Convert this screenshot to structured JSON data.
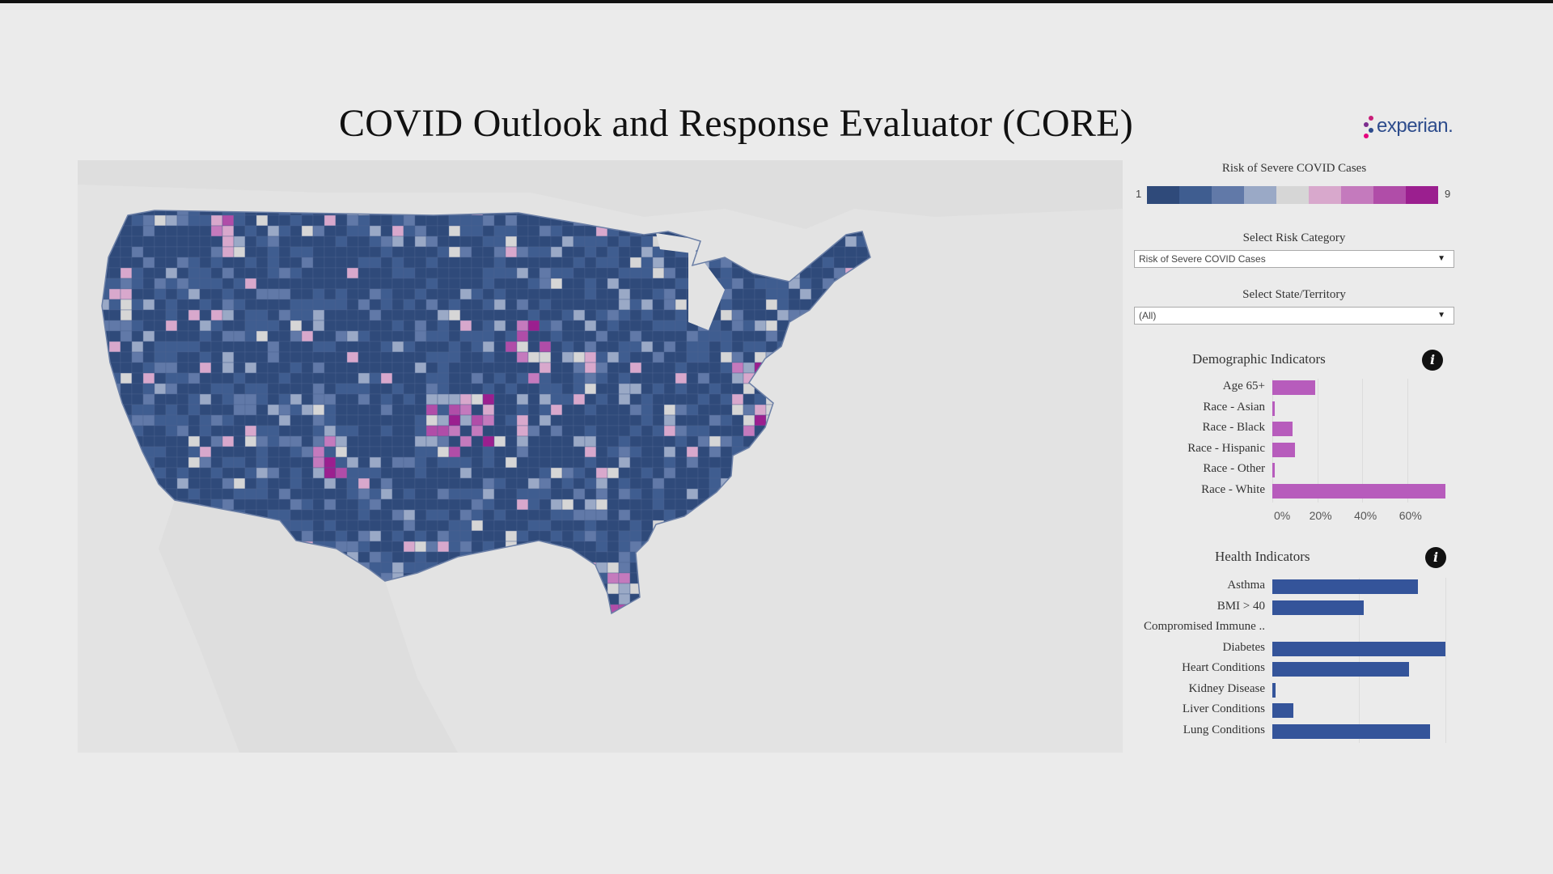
{
  "title": "COVID Outlook and Response Evaluator (CORE)",
  "logo": {
    "text": "experian.",
    "dot_colors": [
      "#c81e78",
      "#7b2d8e",
      "#2d4c8c",
      "#e6007e"
    ]
  },
  "legend": {
    "title": "Risk of Severe COVID Cases",
    "min_label": "1",
    "max_label": "9",
    "colors": [
      "#2f4a7a",
      "#3f5d90",
      "#6179a8",
      "#9aa9c6",
      "#d6d6d6",
      "#d8a8cc",
      "#c47abd",
      "#b04da8",
      "#9b1f8f"
    ]
  },
  "filters": {
    "risk": {
      "label": "Select Risk Category",
      "value": "Risk of Severe COVID Cases"
    },
    "state": {
      "label": "Select State/Territory",
      "value": "(All)"
    }
  },
  "demographic": {
    "title": "Demographic Indicators",
    "bar_color": "#b75cbc",
    "ticks": [
      "0%",
      "20%",
      "40%",
      "60%"
    ],
    "items": [
      {
        "label": "Age 65+",
        "value": 19
      },
      {
        "label": "Race - Asian",
        "value": 1
      },
      {
        "label": "Race - Black",
        "value": 9
      },
      {
        "label": "Race - Hispanic",
        "value": 10
      },
      {
        "label": "Race - Other",
        "value": 1
      },
      {
        "label": "Race - White",
        "value": 77
      }
    ]
  },
  "health": {
    "title": "Health Indicators",
    "bar_color": "#34549a",
    "items": [
      {
        "label": "Asthma",
        "value": 0.84
      },
      {
        "label": "BMI > 40",
        "value": 0.53
      },
      {
        "label": "Compromised Immune ..",
        "value": 0
      },
      {
        "label": "Diabetes",
        "value": 1.0
      },
      {
        "label": "Heart Conditions",
        "value": 0.79
      },
      {
        "label": "Kidney Disease",
        "value": 0.02
      },
      {
        "label": "Liver Conditions",
        "value": 0.12
      },
      {
        "label": "Lung Conditions",
        "value": 0.91
      }
    ]
  }
}
